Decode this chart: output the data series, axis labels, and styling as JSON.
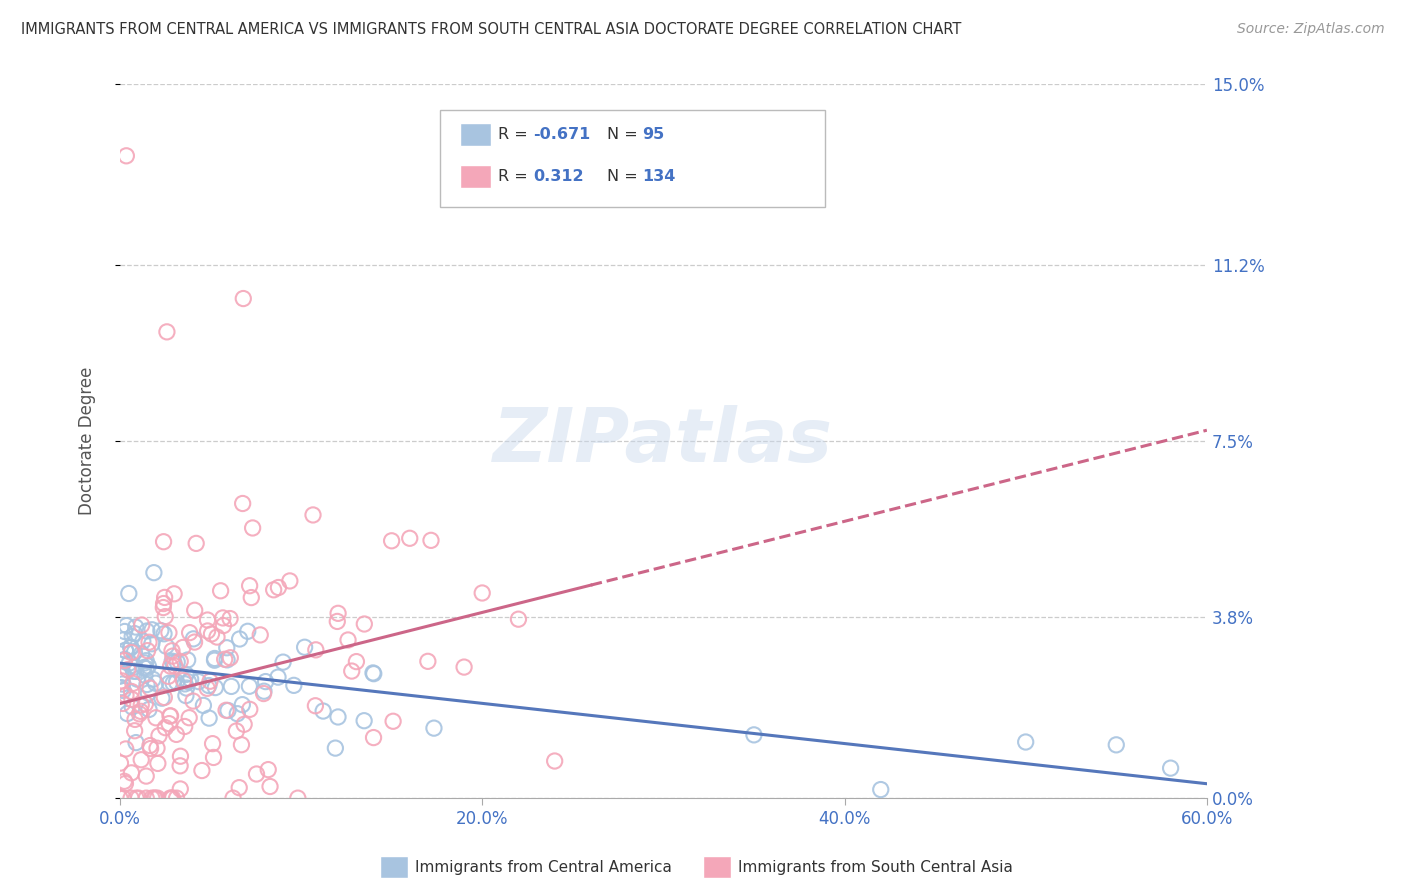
{
  "title": "IMMIGRANTS FROM CENTRAL AMERICA VS IMMIGRANTS FROM SOUTH CENTRAL ASIA DOCTORATE DEGREE CORRELATION CHART",
  "source": "Source: ZipAtlas.com",
  "ylabel_label": "Doctorate Degree",
  "xmin": 0.0,
  "xmax": 0.6,
  "ymin": 0.0,
  "ymax": 0.15,
  "yticks": [
    0.0,
    0.038,
    0.075,
    0.112,
    0.15
  ],
  "ytick_labels": [
    "0.0%",
    "3.8%",
    "7.5%",
    "11.2%",
    "15.0%"
  ],
  "xticks": [
    0.0,
    0.2,
    0.4,
    0.6
  ],
  "xtick_labels": [
    "0.0%",
    "20.0%",
    "40.0%",
    "60.0%"
  ],
  "blue_R": -0.671,
  "blue_N": 95,
  "pink_R": 0.312,
  "pink_N": 134,
  "blue_color": "#a8c4e0",
  "pink_color": "#f4a7b9",
  "blue_line_color": "#5577bb",
  "pink_line_color": "#cc6688",
  "watermark": "ZIPatlas",
  "bottom_legend_blue": "Immigrants from Central America",
  "bottom_legend_pink": "Immigrants from South Central Asia",
  "background_color": "#ffffff",
  "grid_color": "#cccccc",
  "title_color": "#333333",
  "axis_label_color": "#4472c4",
  "legend_R_color": "#333333",
  "legend_val_color": "#4472c4"
}
